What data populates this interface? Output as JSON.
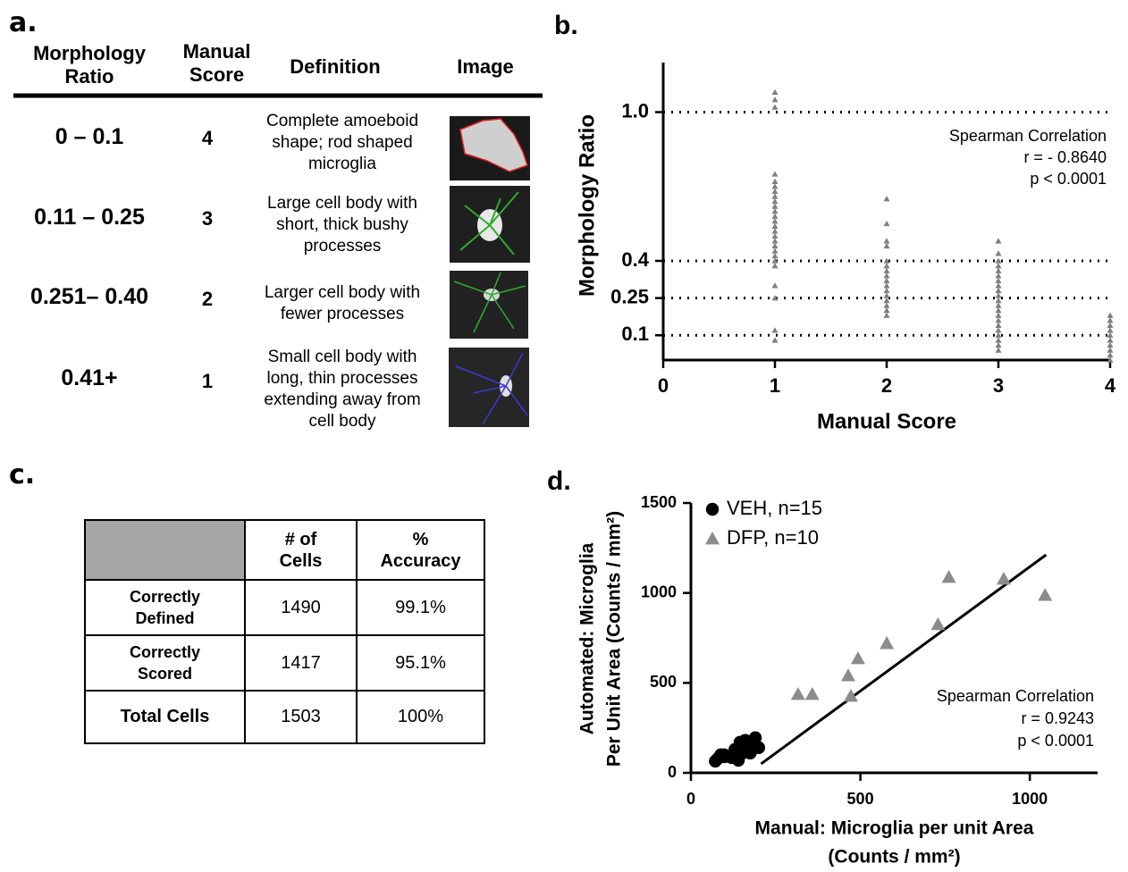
{
  "panel_a": {
    "label": "a.",
    "headers": [
      "Morphology Ratio",
      "Manual Score",
      "Definition",
      "Image"
    ],
    "rows": [
      {
        "ratio": "0 – 0.1",
        "score": 4,
        "definition": "Complete amoeboid shape; rod shaped microglia"
      },
      {
        "ratio": "0.11 – 0.25",
        "score": 3,
        "definition": "Large cell body with short, thick bushy processes"
      },
      {
        "ratio": "0.251– 0.40",
        "score": 2,
        "definition": "Larger cell body with fewer processes"
      },
      {
        "ratio": "0.41+",
        "score": 1,
        "definition": "Small cell body with long, thin processes extending away from cell body"
      }
    ]
  },
  "panel_c": {
    "label": "c.",
    "columns": [
      "# of Cells",
      "% Accuracy"
    ],
    "rows": [
      {
        "label": "Correctly Defined",
        "cells": [
          1490,
          "99.1%"
        ]
      },
      {
        "label": "Correctly Scored",
        "cells": [
          1417,
          "95.1%"
        ]
      },
      {
        "label": "Total Cells",
        "cells": [
          1503,
          "100%"
        ]
      }
    ]
  },
  "chart_data": [
    {
      "type": "scatter",
      "label": "b.",
      "xlabel": "Manual Score",
      "ylabel": "Morphology Ratio",
      "xlim": [
        0,
        4
      ],
      "xticks": [
        0,
        1,
        2,
        3,
        4
      ],
      "ylim": [
        0,
        1.2
      ],
      "yticks": [
        0.1,
        0.25,
        0.4,
        {
          "value": 1,
          "label": "1.0"
        }
      ],
      "grid": true,
      "series": [
        {
          "color": "#7f7f7f",
          "marker": "triangle",
          "x": [
            1,
            1,
            1,
            1,
            1,
            1,
            1,
            1,
            1,
            1,
            1,
            1,
            1,
            1,
            1,
            1,
            1,
            1,
            1,
            1,
            1,
            1,
            1,
            1,
            1,
            1,
            2,
            2,
            2,
            2,
            2,
            2,
            2,
            2,
            2,
            2,
            2,
            2,
            2,
            2,
            2,
            2,
            3,
            3,
            3,
            3,
            3,
            3,
            3,
            3,
            3,
            3,
            3,
            3,
            3,
            3,
            3,
            3,
            3,
            3,
            3,
            3,
            3,
            4,
            4,
            4,
            4,
            4,
            4,
            4,
            4,
            4,
            4
          ],
          "values": [
            1.08,
            1.05,
            1.02,
            0.75,
            0.72,
            0.7,
            0.68,
            0.66,
            0.64,
            0.62,
            0.6,
            0.58,
            0.56,
            0.54,
            0.52,
            0.5,
            0.48,
            0.46,
            0.44,
            0.42,
            0.4,
            0.38,
            0.3,
            0.25,
            0.12,
            0.08,
            0.65,
            0.55,
            0.48,
            0.46,
            0.4,
            0.38,
            0.36,
            0.34,
            0.32,
            0.3,
            0.28,
            0.26,
            0.24,
            0.22,
            0.2,
            0.18,
            0.48,
            0.43,
            0.4,
            0.38,
            0.36,
            0.34,
            0.32,
            0.3,
            0.28,
            0.26,
            0.24,
            0.22,
            0.2,
            0.18,
            0.16,
            0.14,
            0.12,
            0.1,
            0.08,
            0.06,
            0.04,
            0.18,
            0.16,
            0.14,
            0.12,
            0.1,
            0.08,
            0.06,
            0.04,
            0.02,
            0
          ]
        }
      ],
      "annotation": [
        "Spearman Correlation",
        "r = - 0.8640",
        "p < 0.0001"
      ]
    },
    {
      "type": "scatter",
      "label": "d.",
      "xlabel": [
        "Manual: Microglia per unit  Area",
        "(Counts / mm²)"
      ],
      "ylabel": [
        "Automated: Microglia",
        "Per Unit Area (Counts / mm²)"
      ],
      "xlim": [
        0,
        1200
      ],
      "xticks": [
        0,
        500,
        1000
      ],
      "ylim": [
        0,
        1500
      ],
      "yticks": [
        0,
        500,
        1000,
        1500
      ],
      "grid": false,
      "series": [
        {
          "name": "VEH, n=15",
          "color": "#000000",
          "marker": "circle",
          "x": [
            72,
            88,
            98,
            120,
            130,
            145,
            152,
            175,
            178,
            190,
            200,
            80,
            100,
            140,
            160
          ],
          "values": [
            65,
            100,
            100,
            85,
            130,
            170,
            110,
            110,
            135,
            195,
            140,
            80,
            90,
            70,
            180
          ]
        },
        {
          "name": "DFP, n=10",
          "color": "#8c8c8c",
          "marker": "triangle",
          "x": [
            316,
            358,
            464,
            472,
            493,
            578,
            729,
            761,
            923,
            1045
          ],
          "values": [
            437,
            437,
            541,
            427,
            636,
            720,
            825,
            1088,
            1078,
            988
          ]
        }
      ],
      "fit": {
        "x": [
          207,
          1048
        ],
        "values": [
          50,
          1212
        ]
      },
      "annotation": [
        "Spearman Correlation",
        "r = 0.9243",
        "p < 0.0001"
      ]
    }
  ]
}
